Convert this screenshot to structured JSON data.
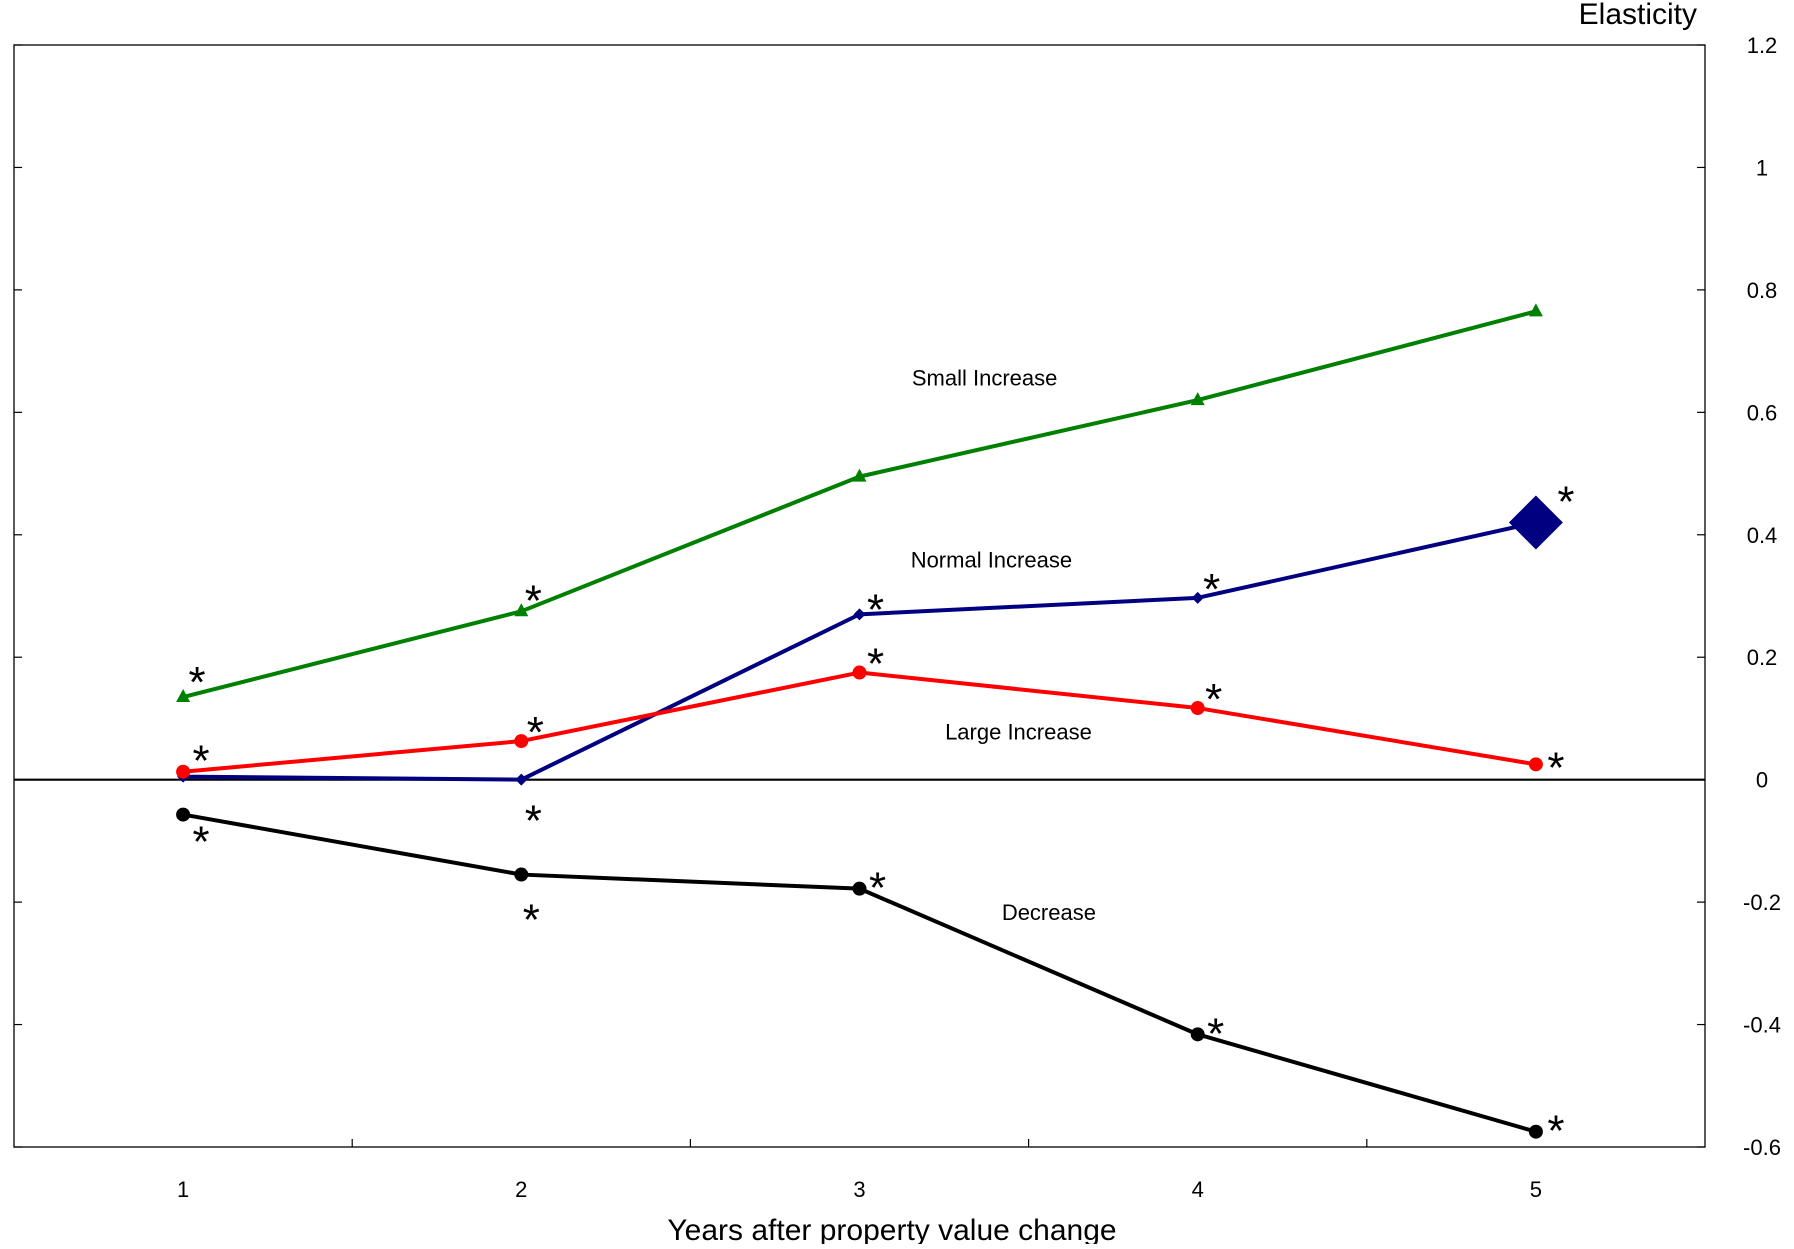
{
  "chart_data": {
    "type": "line",
    "xlabel": "Years after property value change",
    "ylabel": "Elasticity",
    "x": [
      1,
      2,
      3,
      4,
      5
    ],
    "xlim": [
      0.5,
      5.5
    ],
    "ylim": [
      -0.6,
      1.2
    ],
    "y_ticks": [
      1.2,
      1,
      0.8,
      0.6,
      0.4,
      0.2,
      0,
      -0.2,
      -0.4,
      -0.6
    ],
    "x_ticks": [
      1,
      2,
      3,
      4,
      5
    ],
    "y_axis_side": "right",
    "grid": false,
    "legend": "none (direct labels on lines)",
    "series": [
      {
        "name": "Small Increase",
        "color": "#008000",
        "marker": "triangle",
        "values": [
          0.135,
          0.275,
          0.495,
          0.62,
          0.765
        ],
        "significant": [
          true,
          true,
          false,
          false,
          false
        ]
      },
      {
        "name": "Normal Increase",
        "color": "#000080",
        "marker": "diamond",
        "values": [
          0.005,
          0.0,
          0.27,
          0.297,
          0.42
        ],
        "significant": [
          false,
          true,
          true,
          true,
          true
        ]
      },
      {
        "name": "Large Increase",
        "color": "#ff0000",
        "marker": "circle",
        "values": [
          0.013,
          0.063,
          0.175,
          0.117,
          0.025
        ],
        "significant": [
          true,
          true,
          true,
          true,
          true
        ]
      },
      {
        "name": "Decrease",
        "color": "#000000",
        "marker": "circle",
        "values": [
          -0.057,
          -0.155,
          -0.178,
          -0.416,
          -0.575
        ],
        "significant": [
          true,
          true,
          true,
          true,
          true
        ]
      }
    ],
    "significance_symbol": "*"
  }
}
